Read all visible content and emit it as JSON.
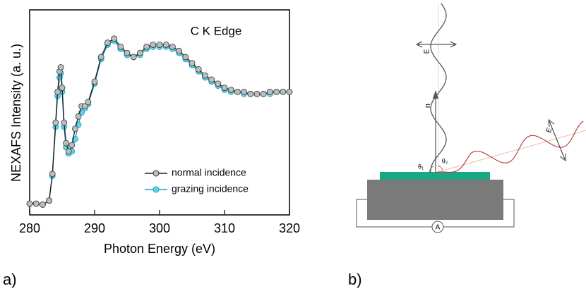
{
  "chart_data": {
    "type": "line",
    "annotation": "C K Edge",
    "xlabel": "Photon Energy (eV)",
    "ylabel": "NEXAFS Intensity (a. u.)",
    "x": [
      280,
      281,
      282,
      283,
      283.5,
      284,
      284.3,
      284.6,
      284.8,
      285,
      285.3,
      285.6,
      286,
      286.5,
      287,
      287.5,
      288,
      288.5,
      289,
      290,
      291,
      292,
      293,
      294,
      295,
      296,
      297,
      298,
      299,
      300,
      301,
      302,
      303,
      304,
      305,
      306,
      307,
      308,
      309,
      310,
      311,
      312,
      313,
      314,
      315,
      316,
      317,
      318,
      319,
      320
    ],
    "series": [
      {
        "name": "normal incidence",
        "color": "#bdbdbd",
        "edge_color": "#333333",
        "values": [
          0.055,
          0.055,
          0.05,
          0.07,
          0.2,
          0.45,
          0.6,
          0.7,
          0.72,
          0.62,
          0.45,
          0.35,
          0.31,
          0.34,
          0.42,
          0.48,
          0.53,
          0.53,
          0.55,
          0.65,
          0.77,
          0.84,
          0.86,
          0.82,
          0.79,
          0.77,
          0.79,
          0.82,
          0.83,
          0.83,
          0.83,
          0.82,
          0.8,
          0.77,
          0.74,
          0.71,
          0.68,
          0.66,
          0.64,
          0.62,
          0.61,
          0.6,
          0.6,
          0.59,
          0.59,
          0.59,
          0.6,
          0.6,
          0.6,
          0.6
        ]
      },
      {
        "name": "grazing incidence",
        "color": "#5fd3e8",
        "edge_color": "#1a9fc0",
        "values": [
          0.055,
          0.055,
          0.05,
          0.07,
          0.19,
          0.43,
          0.58,
          0.67,
          0.69,
          0.6,
          0.43,
          0.33,
          0.3,
          0.31,
          0.37,
          0.44,
          0.5,
          0.52,
          0.54,
          0.64,
          0.76,
          0.83,
          0.85,
          0.81,
          0.78,
          0.77,
          0.78,
          0.81,
          0.82,
          0.82,
          0.82,
          0.81,
          0.79,
          0.76,
          0.73,
          0.7,
          0.67,
          0.65,
          0.63,
          0.61,
          0.6,
          0.6,
          0.59,
          0.59,
          0.59,
          0.59,
          0.59,
          0.6,
          0.6,
          0.6
        ]
      }
    ],
    "xlim": [
      280,
      320
    ],
    "xticks": [
      280,
      290,
      300,
      310,
      320
    ],
    "ylim": [
      0,
      1
    ],
    "legend": "lower right"
  },
  "panel_labels": [
    "a)",
    "b)"
  ],
  "diagram": {
    "labels": {
      "field": "E",
      "normal": "n",
      "theta1": "θ₁",
      "theta2": "θ₂",
      "field_reflected": "E",
      "ammeter": "A"
    }
  }
}
